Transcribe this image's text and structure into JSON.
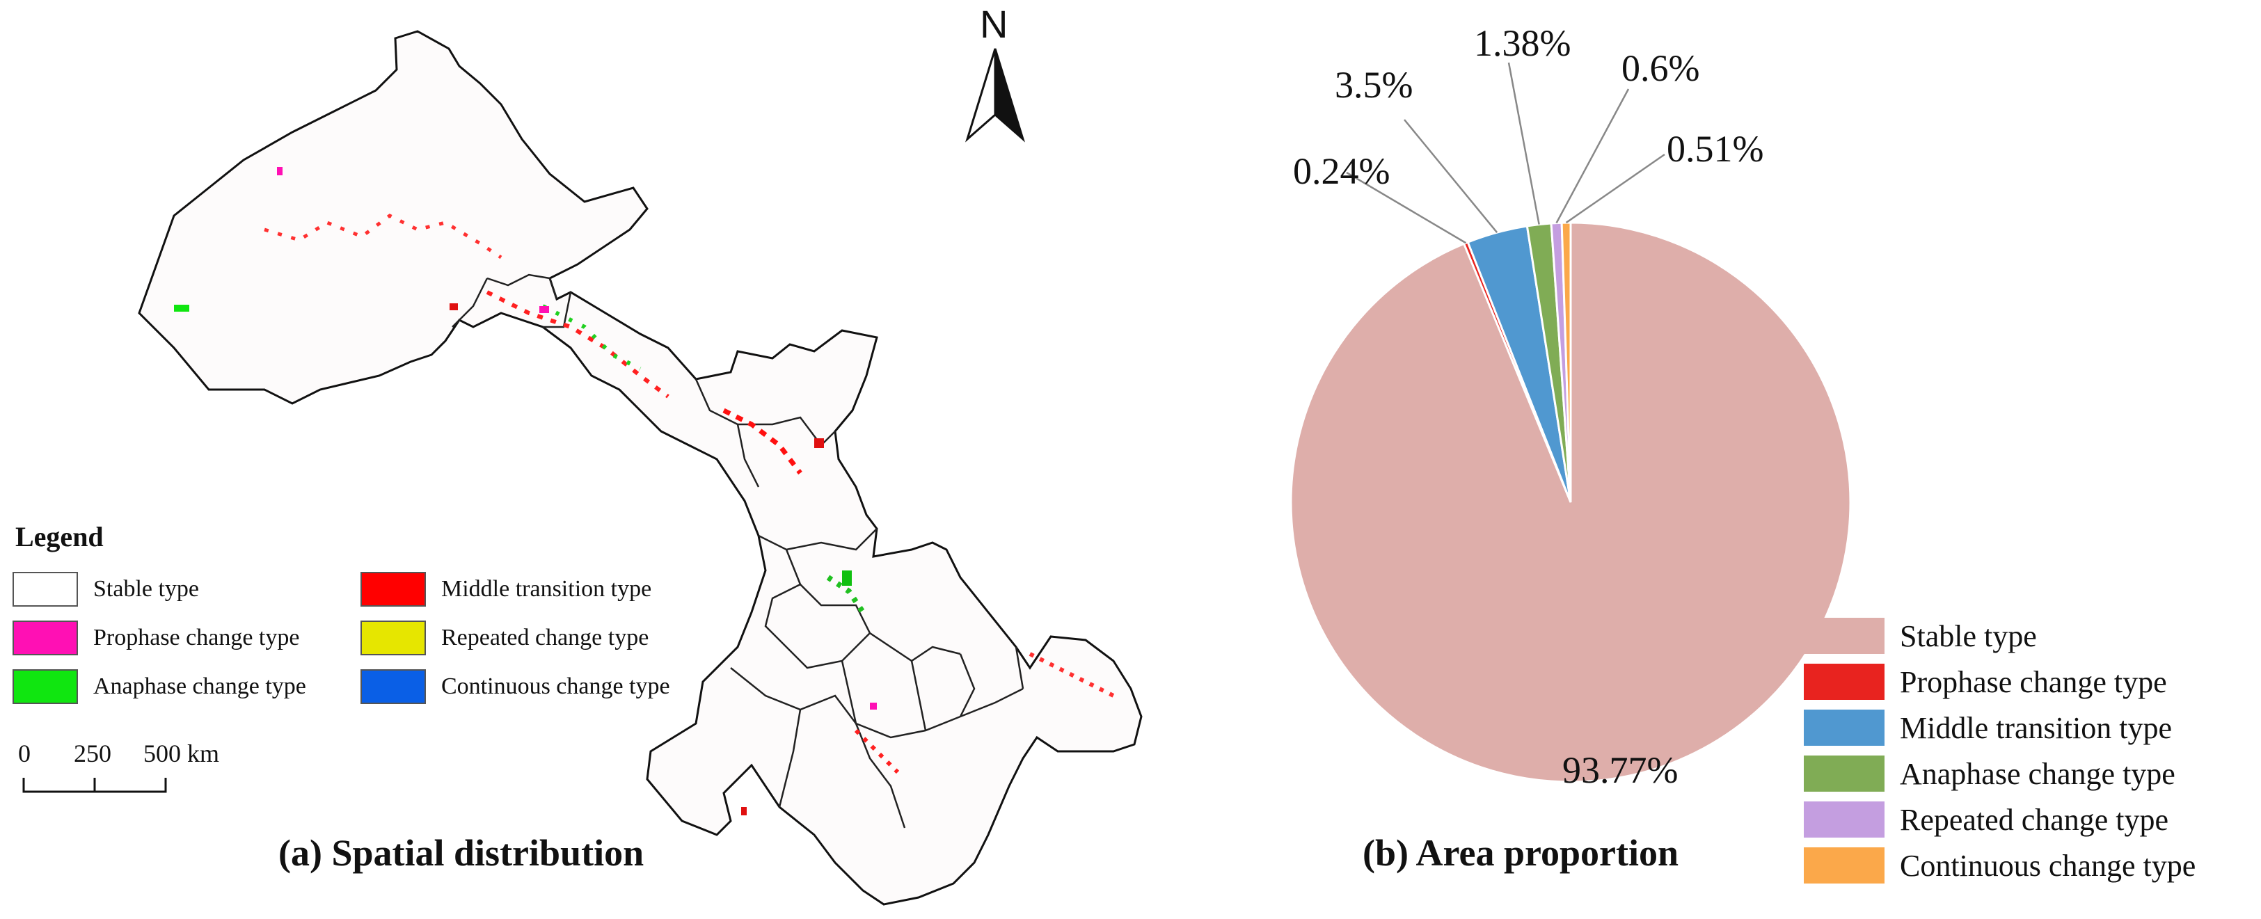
{
  "left_panel": {
    "caption": "(a) Spatial distribution",
    "legend": {
      "title": "Legend",
      "items": [
        {
          "label": "Stable type",
          "color": "#ffffff"
        },
        {
          "label": "Prophase change type",
          "color": "#ff10b4"
        },
        {
          "label": "Anaphase change type",
          "color": "#10e610"
        },
        {
          "label": "Middle transition type",
          "color": "#ff0000"
        },
        {
          "label": "Repeated change type",
          "color": "#e6e600"
        },
        {
          "label": "Continuous change type",
          "color": "#0a5fe6"
        }
      ]
    },
    "scale_bar": {
      "labels": [
        "0",
        "250",
        "500 km"
      ]
    },
    "north_arrow": {
      "letter": "N"
    }
  },
  "chart_data": {
    "type": "pie",
    "title": "(b) Area proportion",
    "slices": [
      {
        "name": "Stable type",
        "value": 93.77,
        "label": "93.77%",
        "color": "#deaeaa"
      },
      {
        "name": "Prophase change type",
        "value": 0.24,
        "label": "0.24%",
        "color": "#e8231f"
      },
      {
        "name": "Middle transition type",
        "value": 3.5,
        "label": "3.5%",
        "color": "#5098d0"
      },
      {
        "name": "Anaphase change type",
        "value": 1.38,
        "label": "1.38%",
        "color": "#80ac55"
      },
      {
        "name": "Repeated change type",
        "value": 0.6,
        "label": "0.6%",
        "color": "#c49ee0"
      },
      {
        "name": "Continuous change type",
        "value": 0.51,
        "label": "0.51%",
        "color": "#fba84a"
      }
    ],
    "legend_position": "bottom-right"
  }
}
